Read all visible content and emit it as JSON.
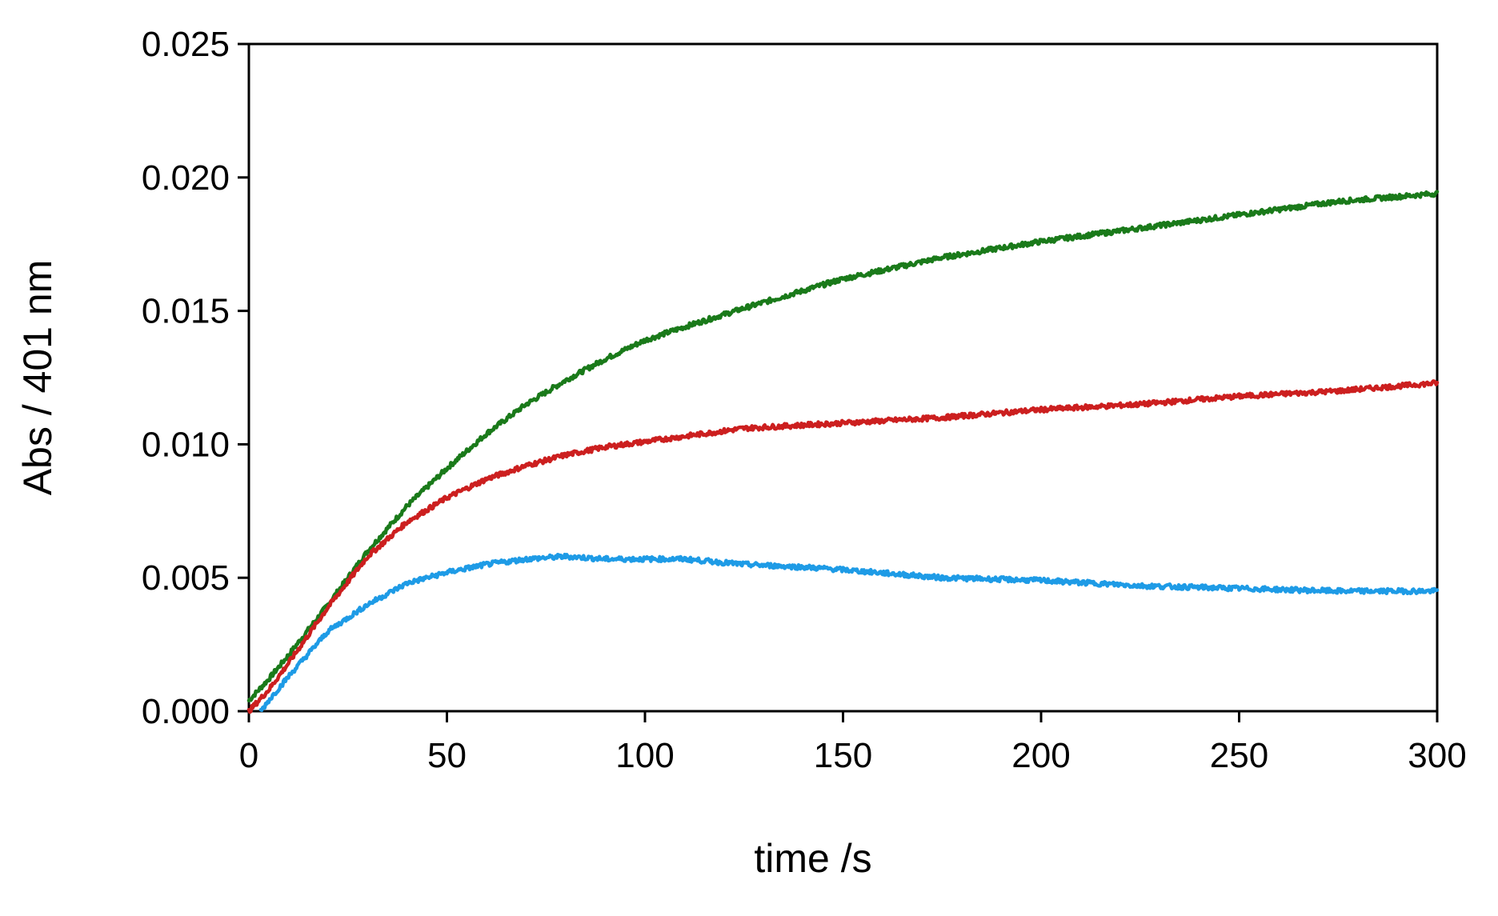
{
  "chart_data": {
    "type": "line",
    "title": "",
    "xlabel": "time /s",
    "ylabel": "Abs / 401 nm",
    "xlim": [
      0,
      300
    ],
    "ylim": [
      0,
      0.025
    ],
    "xticks": [
      0,
      50,
      100,
      150,
      200,
      250,
      300
    ],
    "xtick_labels": [
      "0",
      "50",
      "100",
      "150",
      "200",
      "250",
      "300"
    ],
    "yticks": [
      0,
      0.005,
      0.01,
      0.015,
      0.02,
      0.025
    ],
    "ytick_labels": [
      "0.000",
      "0.005",
      "0.010",
      "0.015",
      "0.020",
      "0.025"
    ],
    "grid": false,
    "legend": "none",
    "series": [
      {
        "color": "#1a7a1a",
        "x": [
          0,
          5,
          10,
          20,
          30,
          40,
          50,
          60,
          70,
          80,
          90,
          100,
          110,
          125,
          150,
          175,
          200,
          225,
          250,
          275,
          300
        ],
        "y": [
          0.0004,
          0.0012,
          0.0021,
          0.004,
          0.006,
          0.0077,
          0.0091,
          0.0104,
          0.0115,
          0.0124,
          0.0132,
          0.0139,
          0.0144,
          0.0151,
          0.0162,
          0.017,
          0.0176,
          0.0181,
          0.0186,
          0.0191,
          0.0194
        ]
      },
      {
        "color": "#cc1f1f",
        "x": [
          0,
          5,
          10,
          20,
          30,
          40,
          50,
          60,
          70,
          80,
          90,
          100,
          125,
          150,
          175,
          200,
          225,
          250,
          275,
          300
        ],
        "y": [
          0.0,
          0.0008,
          0.0018,
          0.0039,
          0.0058,
          0.0071,
          0.008,
          0.0087,
          0.0092,
          0.0096,
          0.0099,
          0.0101,
          0.0106,
          0.0108,
          0.011,
          0.0113,
          0.0115,
          0.0118,
          0.012,
          0.0123
        ]
      },
      {
        "color": "#1e9be6",
        "x": [
          3,
          5,
          10,
          20,
          30,
          40,
          50,
          60,
          70,
          80,
          90,
          100,
          110,
          125,
          140,
          150,
          175,
          200,
          225,
          250,
          275,
          300
        ],
        "y": [
          0.0,
          0.0004,
          0.0013,
          0.003,
          0.004,
          0.0048,
          0.0052,
          0.0055,
          0.0057,
          0.0058,
          0.0057,
          0.0057,
          0.0057,
          0.0055,
          0.0054,
          0.0053,
          0.005,
          0.0049,
          0.0047,
          0.0046,
          0.0045,
          0.0045
        ]
      }
    ]
  }
}
